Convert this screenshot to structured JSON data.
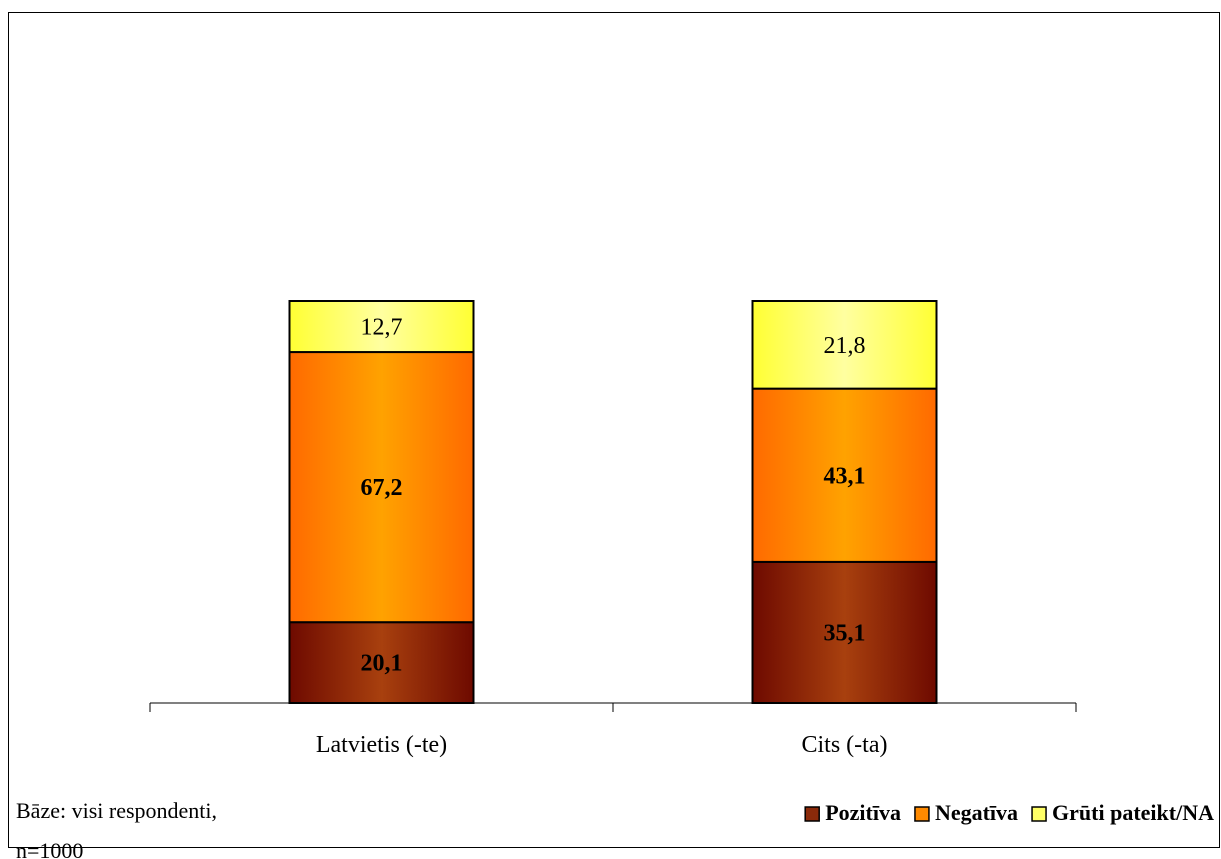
{
  "chart_data": {
    "type": "bar",
    "stacked": true,
    "categories": [
      "Latvietis (-te)",
      "Cits (-ta)"
    ],
    "series": [
      {
        "name": "Pozitīva",
        "values": [
          20.1,
          35.1
        ],
        "labels": [
          "20,1",
          "35,1"
        ],
        "color": "#8B2A0A",
        "label_bold": true
      },
      {
        "name": "Negatīva",
        "values": [
          67.2,
          43.1
        ],
        "labels": [
          "67,2",
          "43,1"
        ],
        "color": "#FF8A00",
        "label_bold": true
      },
      {
        "name": "Grūti pateikt/NA",
        "values": [
          12.7,
          21.8
        ],
        "labels": [
          "12,7",
          "21,8"
        ],
        "color": "#FFFF66",
        "label_bold": false
      }
    ],
    "ylim": [
      0,
      100
    ],
    "grid": false,
    "legend_position": "bottom-right",
    "note": [
      "Bāze: visi respondenti,",
      "n=1000"
    ]
  }
}
